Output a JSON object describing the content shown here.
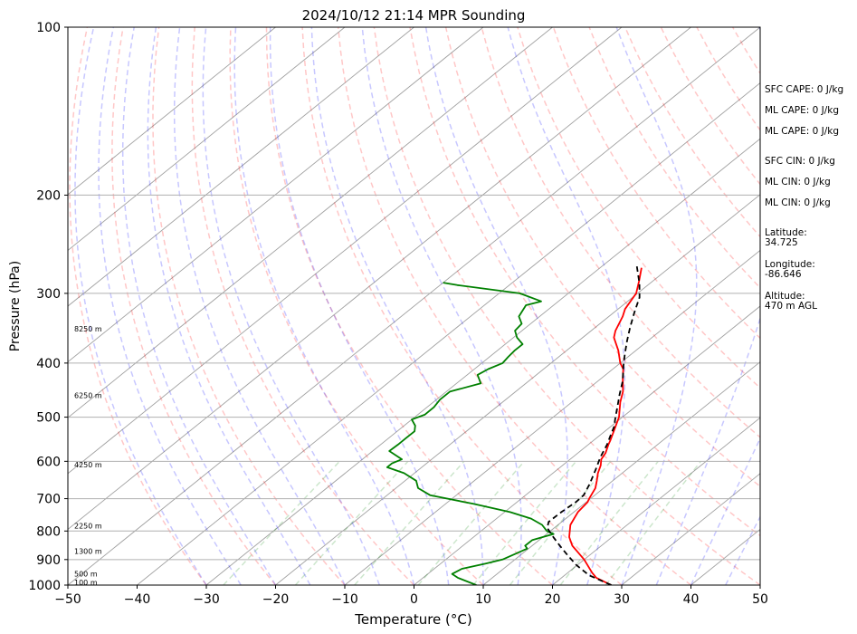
{
  "chart_data": {
    "type": "line",
    "title": "2024/10/12 21:14 MPR Sounding",
    "xlabel": "Temperature (°C)",
    "ylabel": "Pressure (hPa)",
    "xlim": [
      -50,
      50
    ],
    "ylim": [
      1000,
      100
    ],
    "y_scale": "log",
    "x_ticks": [
      "−50",
      "−40",
      "−30",
      "−20",
      "−10",
      "0",
      "10",
      "20",
      "30",
      "40",
      "50"
    ],
    "y_ticks": [
      "1000",
      "900",
      "800",
      "700",
      "600",
      "500",
      "400",
      "300",
      "200",
      "100"
    ],
    "grid": true,
    "skew": true,
    "series": [
      {
        "role": "temperature",
        "color": "#ff0000",
        "style": "solid",
        "points": [
          [
            28.5,
            1000
          ],
          [
            25.0,
            970
          ],
          [
            23.5,
            950
          ],
          [
            20.0,
            900
          ],
          [
            15.8,
            850
          ],
          [
            13.8,
            820
          ],
          [
            11.8,
            780
          ],
          [
            10.6,
            740
          ],
          [
            10.2,
            710
          ],
          [
            9.8,
            700
          ],
          [
            8.8,
            670
          ],
          [
            7.7,
            650
          ],
          [
            6.5,
            630
          ],
          [
            5.5,
            610
          ],
          [
            4.5,
            595
          ],
          [
            4.0,
            580
          ],
          [
            2.9,
            560
          ],
          [
            2.4,
            550
          ],
          [
            1.0,
            525
          ],
          [
            -0.5,
            500
          ],
          [
            -3.0,
            470
          ],
          [
            -4.5,
            450
          ],
          [
            -7.0,
            425
          ],
          [
            -8.5,
            410
          ],
          [
            -10.0,
            400
          ],
          [
            -12.5,
            380
          ],
          [
            -15.5,
            360
          ],
          [
            -16.5,
            350
          ],
          [
            -18.0,
            330
          ],
          [
            -19.0,
            320
          ],
          [
            -20.2,
            300
          ],
          [
            -22.0,
            285
          ],
          [
            -24.0,
            270
          ]
        ]
      },
      {
        "role": "dewpoint",
        "color": "#008000",
        "style": "solid",
        "points": [
          [
            9.0,
            1000
          ],
          [
            5.0,
            970
          ],
          [
            3.5,
            955
          ],
          [
            4.0,
            935
          ],
          [
            6.5,
            915
          ],
          [
            8.2,
            900
          ],
          [
            9.0,
            880
          ],
          [
            9.8,
            860
          ],
          [
            9.0,
            850
          ],
          [
            9.0,
            830
          ],
          [
            10.5,
            815
          ],
          [
            11.0,
            810
          ],
          [
            9.5,
            800
          ],
          [
            7.7,
            780
          ],
          [
            5.0,
            760
          ],
          [
            0.8,
            740
          ],
          [
            -6.0,
            715
          ],
          [
            -13.8,
            690
          ],
          [
            -16.8,
            670
          ],
          [
            -18.4,
            650
          ],
          [
            -21.5,
            630
          ],
          [
            -25.0,
            615
          ],
          [
            -25.0,
            605
          ],
          [
            -24.3,
            595
          ],
          [
            -27.6,
            575
          ],
          [
            -27.5,
            560
          ],
          [
            -27.5,
            545
          ],
          [
            -27.5,
            530
          ],
          [
            -28.4,
            518
          ],
          [
            -30.0,
            505
          ],
          [
            -29.0,
            495
          ],
          [
            -29.0,
            480
          ],
          [
            -29.5,
            465
          ],
          [
            -29.5,
            450
          ],
          [
            -26.5,
            435
          ],
          [
            -28.5,
            420
          ],
          [
            -28.0,
            410
          ],
          [
            -27.0,
            400
          ],
          [
            -27.3,
            390
          ],
          [
            -27.5,
            380
          ],
          [
            -27.5,
            370
          ],
          [
            -29.5,
            360
          ],
          [
            -31.0,
            350
          ],
          [
            -31.3,
            340
          ],
          [
            -33.0,
            330
          ],
          [
            -34.0,
            315
          ],
          [
            -32.5,
            310
          ],
          [
            -37.0,
            300
          ],
          [
            -47.5,
            290
          ],
          [
            -50.0,
            287
          ]
        ]
      },
      {
        "role": "parcel",
        "color": "#000000",
        "style": "dashed",
        "points": [
          [
            28.5,
            1000
          ],
          [
            23.5,
            960
          ],
          [
            19.8,
            920
          ],
          [
            16.5,
            880
          ],
          [
            14.0,
            850
          ],
          [
            11.5,
            820
          ],
          [
            9.0,
            790
          ],
          [
            8.1,
            770
          ],
          [
            8.2,
            740
          ],
          [
            8.5,
            710
          ],
          [
            8.4,
            690
          ],
          [
            7.3,
            660
          ],
          [
            5.5,
            620
          ],
          [
            4.0,
            590
          ],
          [
            2.7,
            560
          ],
          [
            1.6,
            540
          ],
          [
            0.5,
            520
          ],
          [
            -1.0,
            500
          ],
          [
            -2.5,
            480
          ],
          [
            -4.5,
            455
          ],
          [
            -6.5,
            430
          ],
          [
            -9.0,
            405
          ],
          [
            -11.0,
            385
          ],
          [
            -13.0,
            365
          ],
          [
            -15.0,
            345
          ],
          [
            -17.0,
            325
          ],
          [
            -19.0,
            305
          ],
          [
            -21.5,
            288
          ],
          [
            -25.0,
            268
          ]
        ]
      }
    ],
    "height_labels": [
      {
        "label": "100 m",
        "p": 988
      },
      {
        "label": "500 m",
        "p": 955
      },
      {
        "label": "1300 m",
        "p": 870
      },
      {
        "label": "2250 m",
        "p": 783
      },
      {
        "label": "4250 m",
        "p": 608
      },
      {
        "label": "6250 m",
        "p": 457
      },
      {
        "label": "8250 m",
        "p": 347
      }
    ],
    "annotations": [
      {
        "text": "SFC CAPE: 0 J/kg"
      },
      {
        "text": "ML CAPE: 0 J/kg"
      },
      {
        "text": "ML CAPE: 0 J/kg"
      },
      {
        "text": "SFC CIN: 0 J/kg"
      },
      {
        "text": "ML CIN: 0 J/kg"
      },
      {
        "text": "ML CIN: 0 J/kg"
      },
      {
        "text": "Latitude:",
        "value": "34.725"
      },
      {
        "text": "Longitude:",
        "value": "-86.646"
      },
      {
        "text": "Altitude:",
        "value": "470 m AGL"
      }
    ],
    "background_lines": {
      "isotherms": {
        "color": "#808080",
        "start": -120,
        "stop": 50,
        "step": 10
      },
      "dry_adiabats": {
        "color": "#ff0000",
        "start": -30,
        "stop": 200,
        "step": 10,
        "style": "dashed"
      },
      "moist_adiabats": {
        "color": "#0000ff",
        "start": -30,
        "stop": 50,
        "step": 5,
        "style": "dashed"
      },
      "mixing_ratio": {
        "color": "#008000",
        "values_g_per_kg": [
          0.4,
          1,
          2,
          4,
          7,
          10,
          16,
          24
        ],
        "top_hPa": 600,
        "style": "dashed"
      }
    }
  }
}
